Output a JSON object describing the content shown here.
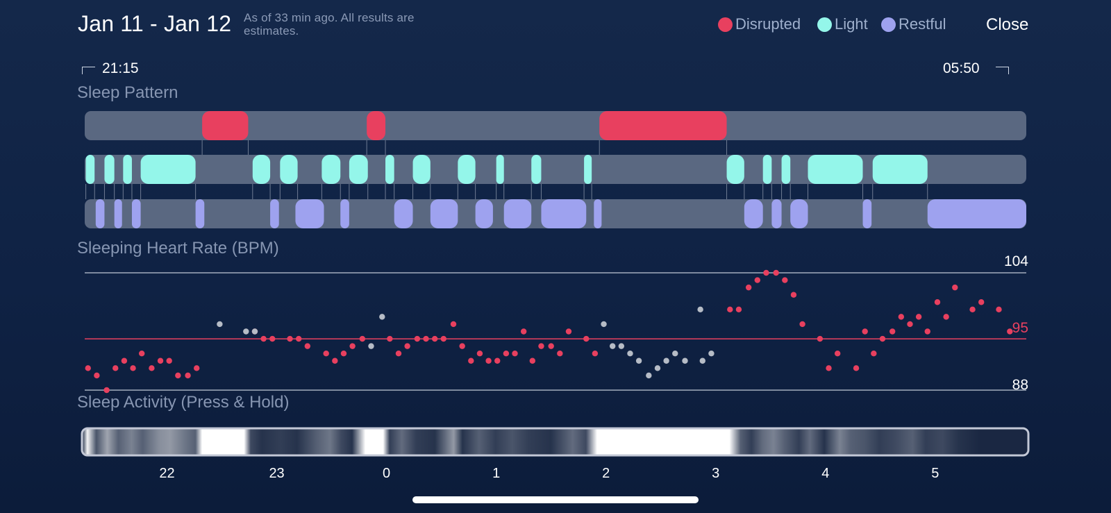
{
  "header": {
    "date_range": "Jan 11 - Jan 12",
    "note": "As of 33 min ago. All results are estimates.",
    "close_label": "Close"
  },
  "legend": [
    {
      "label": "Disrupted",
      "color": "#e8405f"
    },
    {
      "label": "Light",
      "color": "#94f6ea"
    },
    {
      "label": "Restful",
      "color": "#9ea2ef"
    }
  ],
  "time_range": {
    "start": "21:15",
    "end": "05:50"
  },
  "sections": {
    "sleep_pattern": "Sleep Pattern",
    "heart_rate": "Sleeping Heart Rate (BPM)",
    "activity": "Sleep Activity (Press & Hold)"
  },
  "chart_data": [
    {
      "type": "timeline",
      "title": "Sleep Pattern",
      "x_unit": "hours since midnight",
      "x_range": [
        -2.75,
        5.83
      ],
      "lanes": [
        {
          "name": "Disrupted",
          "segments": [
            [
              -1.68,
              -1.26
            ],
            [
              -0.18,
              -0.01
            ],
            [
              1.94,
              3.1
            ]
          ]
        },
        {
          "name": "Light",
          "segments": [
            [
              -2.74,
              -2.66
            ],
            [
              -2.57,
              -2.48
            ],
            [
              -2.4,
              -2.32
            ],
            [
              -2.24,
              -1.74
            ],
            [
              -1.22,
              -1.06
            ],
            [
              -0.97,
              -0.81
            ],
            [
              -0.59,
              -0.42
            ],
            [
              -0.34,
              -0.17
            ],
            [
              -0.01,
              0.07
            ],
            [
              0.24,
              0.4
            ],
            [
              0.65,
              0.81
            ],
            [
              1.0,
              1.07
            ],
            [
              1.32,
              1.41
            ],
            [
              1.8,
              1.87
            ],
            [
              3.1,
              3.26
            ],
            [
              3.43,
              3.51
            ],
            [
              3.6,
              3.68
            ],
            [
              3.84,
              4.34
            ],
            [
              4.43,
              4.93
            ]
          ]
        },
        {
          "name": "Restful",
          "segments": [
            [
              -2.65,
              -2.57
            ],
            [
              -2.48,
              -2.41
            ],
            [
              -2.32,
              -2.24
            ],
            [
              -1.74,
              -1.66
            ],
            [
              -1.06,
              -0.98
            ],
            [
              -0.83,
              -0.57
            ],
            [
              -0.42,
              -0.34
            ],
            [
              0.07,
              0.24
            ],
            [
              0.4,
              0.65
            ],
            [
              0.81,
              0.97
            ],
            [
              1.07,
              1.32
            ],
            [
              1.41,
              1.82
            ],
            [
              1.89,
              1.96
            ],
            [
              3.26,
              3.43
            ],
            [
              3.51,
              3.6
            ],
            [
              3.68,
              3.84
            ],
            [
              4.34,
              4.42
            ],
            [
              4.93,
              5.83
            ]
          ]
        }
      ]
    },
    {
      "type": "scatter",
      "title": "Sleeping Heart Rate (BPM)",
      "ylim": [
        88,
        104
      ],
      "y_ticks": [
        "104",
        "95",
        "88"
      ],
      "reference_line": 95,
      "x_unit": "hours since midnight",
      "series": [
        {
          "name": "Heart rate",
          "color": "#e8405f",
          "points": [
            [
              -2.72,
              91
            ],
            [
              -2.64,
              90
            ],
            [
              -2.55,
              88
            ],
            [
              -2.47,
              91
            ],
            [
              -2.39,
              92
            ],
            [
              -2.31,
              91
            ],
            [
              -2.23,
              93
            ],
            [
              -2.14,
              91
            ],
            [
              -2.06,
              92
            ],
            [
              -1.98,
              92
            ],
            [
              -1.9,
              90
            ],
            [
              -1.81,
              90
            ],
            [
              -1.73,
              91
            ],
            [
              -1.2,
              96
            ],
            [
              -1.12,
              95
            ],
            [
              -1.04,
              95
            ],
            [
              -0.88,
              95
            ],
            [
              -0.8,
              95
            ],
            [
              -0.72,
              94
            ],
            [
              -0.55,
              93
            ],
            [
              -0.47,
              92
            ],
            [
              -0.39,
              93
            ],
            [
              -0.31,
              94
            ],
            [
              -0.22,
              95
            ],
            [
              0.03,
              95
            ],
            [
              0.11,
              93
            ],
            [
              0.19,
              94
            ],
            [
              0.28,
              95
            ],
            [
              0.36,
              95
            ],
            [
              0.44,
              95
            ],
            [
              0.52,
              95
            ],
            [
              0.61,
              97
            ],
            [
              0.69,
              94
            ],
            [
              0.77,
              92
            ],
            [
              0.85,
              93
            ],
            [
              0.93,
              92
            ],
            [
              1.01,
              92
            ],
            [
              1.09,
              93
            ],
            [
              1.17,
              93
            ],
            [
              1.25,
              96
            ],
            [
              1.33,
              92
            ],
            [
              1.41,
              94
            ],
            [
              1.5,
              94
            ],
            [
              1.58,
              93
            ],
            [
              1.66,
              96
            ],
            [
              1.82,
              95
            ],
            [
              1.9,
              93
            ],
            [
              3.13,
              99
            ],
            [
              3.21,
              99
            ],
            [
              3.3,
              102
            ],
            [
              3.38,
              103
            ],
            [
              3.46,
              104
            ],
            [
              3.55,
              104
            ],
            [
              3.63,
              103
            ],
            [
              3.71,
              101
            ],
            [
              3.79,
              97
            ],
            [
              3.95,
              95
            ],
            [
              4.03,
              91
            ],
            [
              4.11,
              93
            ],
            [
              4.28,
              91
            ],
            [
              4.36,
              96
            ],
            [
              4.44,
              93
            ],
            [
              4.52,
              95
            ],
            [
              4.61,
              96
            ],
            [
              4.69,
              98
            ],
            [
              4.77,
              97
            ],
            [
              4.85,
              98
            ],
            [
              4.93,
              96
            ],
            [
              5.02,
              100
            ],
            [
              5.1,
              98
            ],
            [
              5.18,
              102
            ],
            [
              5.34,
              99
            ],
            [
              5.42,
              100
            ],
            [
              5.58,
              99
            ],
            [
              5.68,
              96
            ]
          ]
        },
        {
          "name": "Uncertain",
          "color": "#b6bcc6",
          "points": [
            [
              -1.52,
              97
            ],
            [
              -1.28,
              96
            ],
            [
              -1.2,
              96
            ],
            [
              -0.14,
              94
            ],
            [
              -0.04,
              98
            ],
            [
              1.98,
              97
            ],
            [
              2.06,
              94
            ],
            [
              2.14,
              94
            ],
            [
              2.22,
              93
            ],
            [
              2.3,
              92
            ],
            [
              2.39,
              90
            ],
            [
              2.47,
              91
            ],
            [
              2.55,
              92
            ],
            [
              2.63,
              93
            ],
            [
              2.72,
              92
            ],
            [
              2.86,
              99
            ],
            [
              2.88,
              92
            ],
            [
              2.96,
              93
            ]
          ]
        }
      ]
    },
    {
      "type": "heatmap",
      "title": "Sleep Activity (Press & Hold)",
      "x_unit": "hours since midnight",
      "x_ticks": [
        "22",
        "23",
        "0",
        "1",
        "2",
        "3",
        "4",
        "5"
      ],
      "x_tick_values": [
        -2.0,
        -1.0,
        0,
        1,
        2,
        3,
        4,
        5
      ],
      "intensity_stops": [
        [
          -2.75,
          0.05
        ],
        [
          -2.7,
          0.95
        ],
        [
          -2.62,
          0.25
        ],
        [
          -2.52,
          0.6
        ],
        [
          -2.42,
          0.3
        ],
        [
          -2.3,
          0.45
        ],
        [
          -2.2,
          0.3
        ],
        [
          -2.05,
          0.5
        ],
        [
          -1.95,
          0.55
        ],
        [
          -1.82,
          0.4
        ],
        [
          -1.72,
          0.3
        ],
        [
          -1.66,
          1.0
        ],
        [
          -1.28,
          1.0
        ],
        [
          -1.22,
          0.2
        ],
        [
          -1.12,
          0.1
        ],
        [
          -0.95,
          0.15
        ],
        [
          -0.8,
          0.1
        ],
        [
          -0.62,
          0.3
        ],
        [
          -0.5,
          0.4
        ],
        [
          -0.4,
          0.2
        ],
        [
          -0.3,
          0.1
        ],
        [
          -0.18,
          1.0
        ],
        [
          -0.02,
          1.0
        ],
        [
          0.04,
          0.15
        ],
        [
          0.15,
          0.35
        ],
        [
          0.28,
          0.15
        ],
        [
          0.45,
          0.1
        ],
        [
          0.62,
          0.55
        ],
        [
          0.7,
          0.1
        ],
        [
          0.85,
          0.3
        ],
        [
          1.0,
          0.15
        ],
        [
          1.15,
          0.25
        ],
        [
          1.3,
          0.15
        ],
        [
          1.5,
          0.1
        ],
        [
          1.7,
          0.35
        ],
        [
          1.82,
          0.2
        ],
        [
          1.92,
          1.0
        ],
        [
          3.12,
          1.0
        ],
        [
          3.22,
          0.3
        ],
        [
          3.32,
          0.15
        ],
        [
          3.42,
          0.35
        ],
        [
          3.52,
          0.45
        ],
        [
          3.62,
          0.3
        ],
        [
          3.75,
          0.15
        ],
        [
          3.85,
          0.35
        ],
        [
          3.98,
          0.1
        ],
        [
          4.12,
          0.45
        ],
        [
          4.22,
          0.3
        ],
        [
          4.35,
          0.25
        ],
        [
          4.48,
          0.15
        ],
        [
          4.62,
          0.2
        ],
        [
          4.78,
          0.3
        ],
        [
          4.9,
          0.15
        ],
        [
          5.05,
          0.2
        ],
        [
          5.2,
          0.1
        ],
        [
          5.4,
          0.05
        ],
        [
          5.83,
          0.05
        ]
      ]
    }
  ]
}
